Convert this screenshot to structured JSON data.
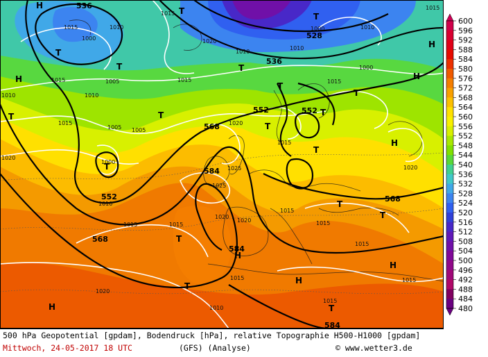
{
  "colorbar": {
    "ticks": [
      "600",
      "596",
      "592",
      "588",
      "584",
      "580",
      "576",
      "572",
      "568",
      "564",
      "560",
      "556",
      "552",
      "548",
      "544",
      "540",
      "536",
      "532",
      "528",
      "524",
      "520",
      "516",
      "512",
      "508",
      "504",
      "500",
      "496",
      "492",
      "488",
      "484",
      "480"
    ],
    "colors": [
      "#cc0055",
      "#d0004a",
      "#d80030",
      "#e00018",
      "#e60a00",
      "#ec3000",
      "#f05a00",
      "#f47e00",
      "#f8a000",
      "#fcc000",
      "#ffe000",
      "#f8f000",
      "#d8f000",
      "#a8e800",
      "#80e000",
      "#58d838",
      "#40d090",
      "#40c8c8",
      "#40a8e8",
      "#3c84f0",
      "#3060f0",
      "#3040d8",
      "#4828c8",
      "#6018b8",
      "#7010a8",
      "#800898",
      "#900888",
      "#a00878",
      "#b00868",
      "#800060",
      "#6a0080"
    ]
  },
  "footer": {
    "line1": "500 hPa Geopotential [gpdam], Bodendruck [hPa], relative Topographie H500-H1000 [gpdam]",
    "date": "Mittwoch, 24-05-2017  18 UTC",
    "model": "(GFS)  (Analyse)",
    "credit": "© www.wetter3.de"
  },
  "map": {
    "geopotential_labels": [
      "536",
      "528",
      "536",
      "552",
      "552",
      "568",
      "552",
      "584",
      "568",
      "568",
      "584",
      "584"
    ],
    "pressure_labels": [
      "1015",
      "1015",
      "1015",
      "1010",
      "1000",
      "1010",
      "1020",
      "1010",
      "1015",
      "1010",
      "1015",
      "1015",
      "1010",
      "1005",
      "1005",
      "1000",
      "1010",
      "1020",
      "1025",
      "1025",
      "1020",
      "1020",
      "1020",
      "1015",
      "1015",
      "1015",
      "1015",
      "1015",
      "1020",
      "1010",
      "1015",
      "1015",
      "1015",
      "1015",
      "1020",
      "1000",
      "1005",
      "1000",
      "1010",
      "1015"
    ],
    "highs": [
      "H",
      "H",
      "H",
      "H",
      "H",
      "H",
      "H",
      "H",
      "H"
    ],
    "lows": [
      "T",
      "T",
      "T",
      "T",
      "T",
      "T",
      "T",
      "T",
      "T",
      "T",
      "T",
      "T",
      "T",
      "T",
      "T",
      "T",
      "T",
      "T"
    ]
  }
}
